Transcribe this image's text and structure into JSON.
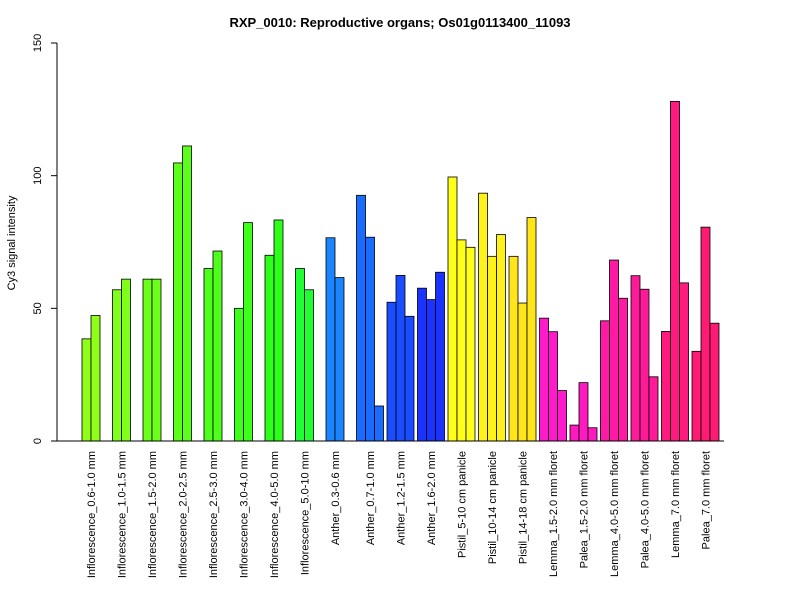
{
  "chart_data": {
    "type": "bar",
    "title": "RXP_0010: Reproductive organs; Os01g0113400_11093",
    "xlabel": "",
    "ylabel": "Cy3 signal intensity",
    "ylim": [
      0,
      150
    ],
    "yticks": [
      0,
      50,
      100,
      150
    ],
    "grid": false,
    "groups": [
      {
        "label": "Inflorescence_0.6-1.0 mm",
        "values": [
          38.5,
          47.3
        ],
        "colors": [
          "#8FFF1A",
          "#8FFF1A"
        ]
      },
      {
        "label": "Inflorescence_1.0-1.5 mm",
        "values": [
          57.0,
          61.0
        ],
        "colors": [
          "#80FF1A",
          "#80FF1A"
        ]
      },
      {
        "label": "Inflorescence_1.5-2.0 mm",
        "values": [
          61.0,
          61.0
        ],
        "colors": [
          "#6CFF1A",
          "#6CFF1A"
        ]
      },
      {
        "label": "Inflorescence_2.0-2.5 mm",
        "values": [
          104.8,
          111.2
        ],
        "colors": [
          "#5CFF1A",
          "#5CFF1A"
        ]
      },
      {
        "label": "Inflorescence_2.5-3.0 mm",
        "values": [
          65.0,
          71.6
        ],
        "colors": [
          "#4DFF1A",
          "#4DFF1A"
        ]
      },
      {
        "label": "Inflorescence_3.0-4.0 mm",
        "values": [
          50.0,
          82.3
        ],
        "colors": [
          "#3DFF1A",
          "#3DFF1A"
        ]
      },
      {
        "label": "Inflorescence_4.0-5.0 mm",
        "values": [
          70.0,
          83.3
        ],
        "colors": [
          "#2EFF1A",
          "#2EFF1A"
        ]
      },
      {
        "label": "Inflorescence_5.0-10 mm",
        "values": [
          65.0,
          57.0
        ],
        "colors": [
          "#1FFF33",
          "#1FFF33"
        ]
      },
      {
        "label": "Anther_0.3-0.6 mm",
        "values": [
          76.6,
          61.6
        ],
        "colors": [
          "#1A85FF",
          "#1A85FF"
        ]
      },
      {
        "label": "Anther_0.7-1.0 mm",
        "values": [
          92.6,
          76.8,
          13.2
        ],
        "colors": [
          "#1A6BFF",
          "#1A6BFF",
          "#1A6BFF"
        ]
      },
      {
        "label": "Anther_1.2-1.5 mm",
        "values": [
          52.3,
          62.4,
          47.0
        ],
        "colors": [
          "#1A4DFF",
          "#1A4DFF",
          "#1A4DFF"
        ]
      },
      {
        "label": "Anther_1.6-2.0 mm",
        "values": [
          57.6,
          53.3,
          63.6
        ],
        "colors": [
          "#1A33FF",
          "#1A33FF",
          "#1A33FF"
        ]
      },
      {
        "label": "Pistil_5-10 cm panicle",
        "values": [
          99.5,
          75.8,
          73.0
        ],
        "colors": [
          "#FFFF1A",
          "#FFFF1A",
          "#FFFF1A"
        ]
      },
      {
        "label": "Pistil_10-14 cm panicle",
        "values": [
          93.4,
          69.6,
          77.8
        ],
        "colors": [
          "#FFF21A",
          "#FFF21A",
          "#FFF21A"
        ]
      },
      {
        "label": "Pistil_14-18 cm panicle",
        "values": [
          69.6,
          52.0,
          84.2
        ],
        "colors": [
          "#FFE51A",
          "#FFE51A",
          "#FFE51A"
        ]
      },
      {
        "label": "Lemma_1.5-2.0 mm floret",
        "values": [
          46.3,
          41.2,
          19.0
        ],
        "colors": [
          "#FF1ACC",
          "#FF1ACC",
          "#FF1ACC"
        ]
      },
      {
        "label": "Palea_1.5-2.0 mm floret",
        "values": [
          6.0,
          22.0,
          5.0
        ],
        "colors": [
          "#FF1ABF",
          "#FF1ABF",
          "#FF1ABF"
        ]
      },
      {
        "label": "Lemma_4.0-5.0 mm floret",
        "values": [
          45.3,
          68.2,
          53.8
        ],
        "colors": [
          "#FF1AA6",
          "#FF1AA6",
          "#FF1AA6"
        ]
      },
      {
        "label": "Palea_4.0-5.0 mm floret",
        "values": [
          62.3,
          57.2,
          24.2
        ],
        "colors": [
          "#FF1A99",
          "#FF1A99",
          "#FF1A99"
        ]
      },
      {
        "label": "Lemma_7.0 mm floret",
        "values": [
          41.3,
          128.0,
          59.6
        ],
        "colors": [
          "#FF1A80",
          "#FF1A80",
          "#FF1A80"
        ]
      },
      {
        "label": "Palea_7.0 mm floret",
        "values": [
          33.8,
          80.6,
          44.4
        ],
        "colors": [
          "#FF1A73",
          "#FF1A73",
          "#FF1A73"
        ]
      }
    ]
  }
}
